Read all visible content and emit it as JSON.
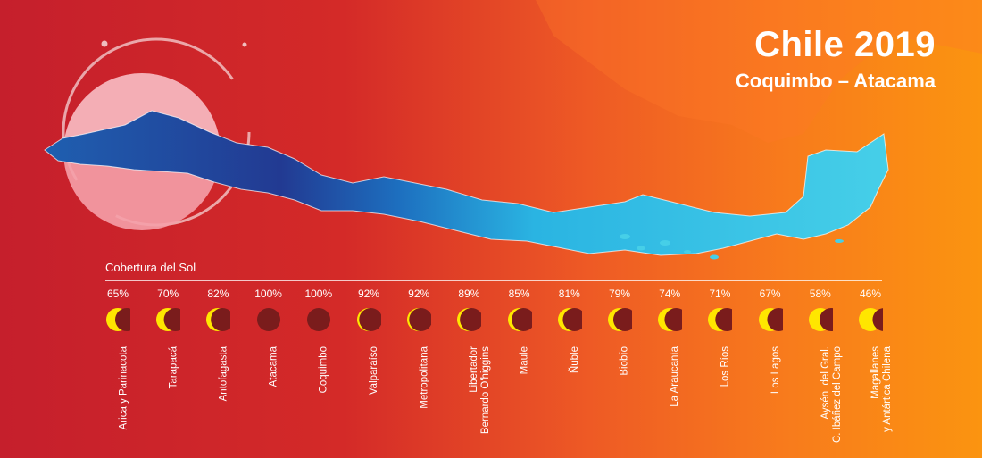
{
  "header": {
    "title": "Chile 2019",
    "subtitle": "Coquimbo – Atacama"
  },
  "legend_label": "Cobertura del Sol",
  "colors": {
    "background_start": "#c51f2c",
    "background_end": "#fb9410",
    "totality_dark_blue": "#1f3a93",
    "partial_light_blue": "#3cc9e6",
    "sun_yellow": "#ffe600",
    "moon_dark_red": "#7a1c1c"
  },
  "chart_data": {
    "type": "bar",
    "title": "Cobertura del Sol",
    "categories": [
      "Arica y Parinacota",
      "Tarapacá",
      "Antofagasta",
      "Atacama",
      "Coquimbo",
      "Valparaíso",
      "Metropolitana",
      "Libertador\nBernardo O'higgins",
      "Maule",
      "Ñuble",
      "Biobío",
      "La Araucanía",
      "Los Ríos",
      "Los Lagos",
      "Aysén  del Gral.\nC. Ibáñez del Campo",
      "Magallanes\ny Antártica Chilena"
    ],
    "labels": [
      "65%",
      "70%",
      "82%",
      "100%",
      "100%",
      "92%",
      "92%",
      "89%",
      "85%",
      "81%",
      "79%",
      "74%",
      "71%",
      "67%",
      "58%",
      "46%"
    ],
    "values": [
      65,
      70,
      82,
      100,
      100,
      92,
      92,
      89,
      85,
      81,
      79,
      74,
      71,
      67,
      58,
      46
    ],
    "ylim": [
      0,
      100
    ]
  }
}
